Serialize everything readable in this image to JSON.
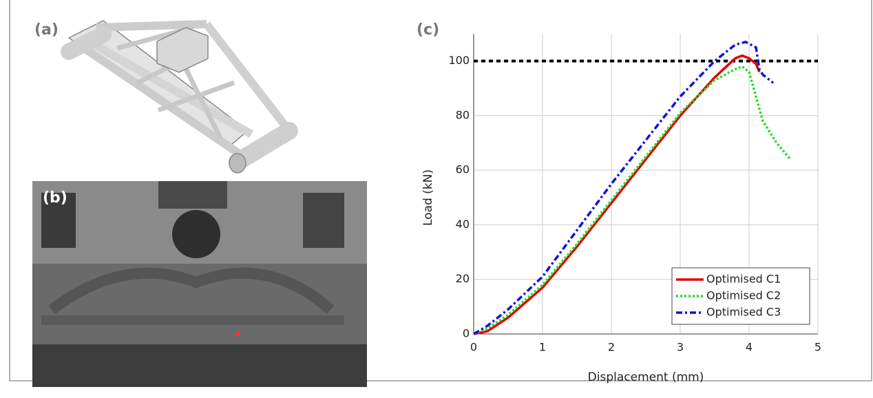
{
  "panel_labels": [
    "(a)",
    "(b)"
  ],
  "chart_data": {
    "type": "line",
    "title": "(c)",
    "x_label": "Displacement (mm)",
    "y_label": "Load (kN)",
    "xlim": [
      0,
      5
    ],
    "xticks": [
      0,
      1,
      2,
      3,
      4,
      5
    ],
    "ylim": [
      0,
      110
    ],
    "yticks": [
      0,
      20,
      40,
      60,
      80,
      100
    ],
    "grid": true,
    "legend": "lower right",
    "reference_line": {
      "value": 100,
      "color": "#000000"
    },
    "series": [
      {
        "name": "Optimised C1",
        "color": "#e00000",
        "dash": "solid",
        "x": [
          0,
          0.2,
          0.5,
          1,
          1.5,
          2,
          2.5,
          3,
          3.5,
          3.8,
          3.9,
          4.0,
          4.1,
          4.15
        ],
        "values": [
          0,
          1,
          6,
          17,
          32,
          48,
          64,
          80,
          94,
          101,
          102,
          101,
          99,
          96
        ]
      },
      {
        "name": "Optimised C2",
        "color": "#22dd22",
        "dash": "dotted",
        "x": [
          0,
          0.2,
          0.5,
          1,
          1.5,
          2,
          2.5,
          3,
          3.5,
          3.8,
          3.9,
          4.0,
          4.1,
          4.2,
          4.4,
          4.6
        ],
        "values": [
          0,
          2,
          7,
          18,
          33,
          49,
          65,
          81,
          93,
          97,
          98,
          96,
          87,
          78,
          70,
          64
        ]
      },
      {
        "name": "Optimised C3",
        "color": "#1010dd",
        "dash": "dashdot",
        "x": [
          0,
          0.2,
          0.5,
          1,
          1.5,
          2,
          2.5,
          3,
          3.5,
          3.8,
          3.95,
          4.1,
          4.15,
          4.2,
          4.35
        ],
        "values": [
          0,
          3,
          9,
          21,
          38,
          55,
          71,
          87,
          100,
          106,
          107,
          105,
          97,
          95,
          92
        ]
      }
    ]
  }
}
